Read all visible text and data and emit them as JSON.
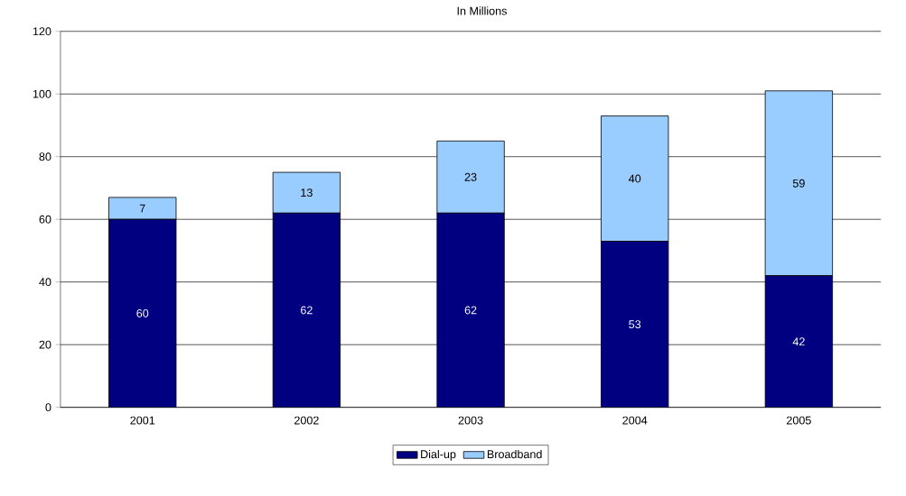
{
  "chart_data": {
    "type": "bar",
    "title": "In Millions",
    "categories": [
      "2001",
      "2002",
      "2003",
      "2004",
      "2005"
    ],
    "series": [
      {
        "name": "Dial-up",
        "color": "#000080",
        "values": [
          60,
          62,
          62,
          53,
          42
        ]
      },
      {
        "name": "Broadband",
        "color": "#99ccff",
        "values": [
          7,
          13,
          23,
          40,
          59
        ]
      }
    ],
    "stacked": true,
    "ylim": [
      0,
      120
    ],
    "yticks": [
      0,
      20,
      40,
      60,
      80,
      100,
      120
    ],
    "grid": "y",
    "legend": "bottom",
    "data_labels": true
  }
}
